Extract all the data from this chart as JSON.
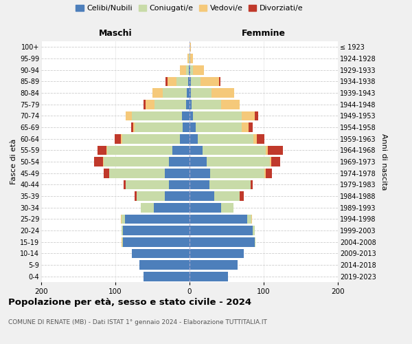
{
  "age_groups": [
    "0-4",
    "5-9",
    "10-14",
    "15-19",
    "20-24",
    "25-29",
    "30-34",
    "35-39",
    "40-44",
    "45-49",
    "50-54",
    "55-59",
    "60-64",
    "65-69",
    "70-74",
    "75-79",
    "80-84",
    "85-89",
    "90-94",
    "95-99",
    "100+"
  ],
  "birth_years": [
    "2019-2023",
    "2014-2018",
    "2009-2013",
    "2004-2008",
    "1999-2003",
    "1994-1998",
    "1989-1993",
    "1984-1988",
    "1979-1983",
    "1974-1978",
    "1969-1973",
    "1964-1968",
    "1959-1963",
    "1954-1958",
    "1949-1953",
    "1944-1948",
    "1939-1943",
    "1934-1938",
    "1929-1933",
    "1924-1928",
    "≤ 1923"
  ],
  "male_celibi": [
    62,
    68,
    78,
    90,
    90,
    87,
    48,
    33,
    28,
    33,
    28,
    23,
    13,
    9,
    10,
    5,
    4,
    2,
    1,
    0,
    0
  ],
  "male_coniugati": [
    0,
    0,
    0,
    1,
    2,
    5,
    18,
    38,
    58,
    75,
    88,
    88,
    78,
    65,
    68,
    42,
    32,
    16,
    4,
    1,
    0
  ],
  "male_vedovi": [
    0,
    0,
    0,
    1,
    0,
    1,
    0,
    0,
    0,
    0,
    1,
    1,
    2,
    2,
    8,
    12,
    14,
    12,
    8,
    2,
    0
  ],
  "male_divorziati": [
    0,
    0,
    0,
    0,
    0,
    0,
    0,
    3,
    3,
    8,
    12,
    12,
    8,
    3,
    0,
    3,
    0,
    2,
    0,
    0,
    0
  ],
  "female_celibi": [
    52,
    65,
    73,
    88,
    85,
    78,
    43,
    33,
    27,
    28,
    23,
    18,
    11,
    8,
    5,
    3,
    2,
    2,
    1,
    0,
    0
  ],
  "female_coniugati": [
    0,
    0,
    0,
    1,
    3,
    5,
    16,
    35,
    55,
    73,
    85,
    85,
    75,
    62,
    65,
    40,
    28,
    13,
    4,
    1,
    0
  ],
  "female_vedovi": [
    0,
    0,
    0,
    0,
    0,
    1,
    0,
    0,
    0,
    2,
    2,
    3,
    5,
    10,
    18,
    25,
    30,
    25,
    14,
    4,
    2
  ],
  "female_divorziati": [
    0,
    0,
    0,
    0,
    0,
    0,
    0,
    5,
    3,
    8,
    12,
    20,
    10,
    5,
    5,
    0,
    0,
    2,
    0,
    0,
    0
  ],
  "colors": {
    "celibi": "#4d7fbb",
    "coniugati": "#c8dba8",
    "vedovi": "#f5c97a",
    "divorziati": "#c0392b"
  },
  "xlim": 200,
  "title_main": "Popolazione per età, sesso e stato civile - 2024",
  "title_sub": "COMUNE DI RENATE (MB) - Dati ISTAT 1° gennaio 2024 - Elaborazione TUTTITALIA.IT",
  "legend_labels": [
    "Celibi/Nubili",
    "Coniugati/e",
    "Vedovi/e",
    "Divorziati/e"
  ],
  "label_maschi": "Maschi",
  "label_femmine": "Femmine",
  "ylabel_axis": "Fasce di età",
  "ylabel_right2": "Anni di nascita",
  "bg_color": "#f0f0f0",
  "plot_bg_color": "#ffffff"
}
